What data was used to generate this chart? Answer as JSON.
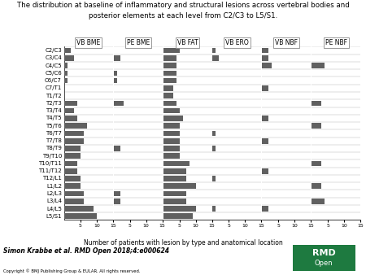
{
  "title_line1": "The distribution at baseline of inflammatory and structural lesions across vertebral bodies and",
  "title_line2": "posterior elements at each level from C2/C3 to L5/S1.",
  "xlabel": "Number of patients with lesion by type and anatomical location",
  "levels": [
    "C2/C3",
    "C3/C4",
    "C4/C5",
    "C5/C6",
    "C6/C7",
    "C7/T1",
    "T1/T2",
    "T2/T3",
    "T3/T4",
    "T4/T5",
    "T5/T6",
    "T6/T7",
    "T7/T8",
    "T8/T9",
    "T9/T10",
    "T10/T11",
    "T11/T12",
    "T12/L1",
    "L1/L2",
    "L2/L3",
    "L3/L4",
    "L4/L5",
    "L5/S1"
  ],
  "panels": [
    {
      "label": "VB BME",
      "xlim": 15,
      "xticks": [
        5,
        10,
        15
      ],
      "values": [
        2,
        3,
        1,
        1,
        1,
        0,
        0,
        4,
        3,
        4,
        7,
        6,
        6,
        5,
        5,
        4,
        4,
        5,
        5,
        6,
        6,
        9,
        10
      ]
    },
    {
      "label": "PE BME",
      "xlim": 15,
      "xticks": [
        5,
        10,
        15
      ],
      "values": [
        0,
        2,
        0,
        1,
        1,
        0,
        0,
        3,
        0,
        0,
        0,
        0,
        0,
        2,
        0,
        0,
        0,
        0,
        0,
        2,
        2,
        0,
        0
      ]
    },
    {
      "label": "VB FAT",
      "xlim": 15,
      "xticks": [
        5,
        10,
        15
      ],
      "values": [
        5,
        4,
        4,
        4,
        4,
        3,
        3,
        4,
        5,
        6,
        5,
        5,
        5,
        5,
        5,
        8,
        7,
        7,
        10,
        7,
        7,
        10,
        9
      ]
    },
    {
      "label": "VB ERO",
      "xlim": 15,
      "xticks": [
        5,
        10,
        15
      ],
      "values": [
        1,
        2,
        0,
        0,
        0,
        0,
        0,
        0,
        0,
        0,
        0,
        1,
        0,
        1,
        0,
        0,
        0,
        1,
        0,
        0,
        0,
        1,
        0
      ]
    },
    {
      "label": "VB NBF",
      "xlim": 15,
      "xticks": [
        5,
        10,
        15
      ],
      "values": [
        2,
        2,
        3,
        0,
        0,
        2,
        0,
        0,
        0,
        2,
        0,
        0,
        2,
        0,
        0,
        0,
        2,
        0,
        0,
        0,
        0,
        2,
        0
      ]
    },
    {
      "label": "PE NBF",
      "xlim": 15,
      "xticks": [
        5,
        10,
        15
      ],
      "values": [
        0,
        0,
        4,
        0,
        0,
        0,
        0,
        3,
        0,
        0,
        3,
        0,
        0,
        0,
        0,
        3,
        0,
        0,
        3,
        0,
        4,
        0,
        0
      ]
    }
  ],
  "bar_color": "#606060",
  "bg_color": "#ffffff",
  "author_text": "Simon Krabbe et al. RMD Open 2018;4:e000624",
  "copyright_text": "Copyright © BMJ Publishing Group & EULAR. All rights reserved.",
  "logo_color": "#1e7a40"
}
